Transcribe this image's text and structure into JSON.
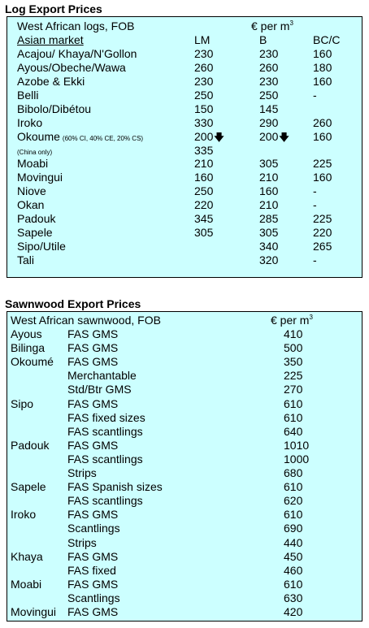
{
  "log_title": "Log Export Prices",
  "log_header": {
    "description": "West African logs, FOB",
    "currency": "€ per m",
    "currency_exp": "3",
    "market": "Asian market",
    "col_lm": "LM",
    "col_b": "B",
    "col_bcc": "BC/C"
  },
  "log_rows": [
    {
      "name": "Acajou/ Khaya/N'Gollon",
      "lm": "230",
      "b": "230",
      "bcc": "160"
    },
    {
      "name": "Ayous/Obeche/Wawa",
      "lm": "260",
      "b": "260",
      "bcc": "180"
    },
    {
      "name": "Azobe & Ekki",
      "lm": "230",
      "b": "230",
      "bcc": "160"
    },
    {
      "name": "Belli",
      "lm": "250",
      "b": "250",
      "bcc": "-"
    },
    {
      "name": "Bibolo/Dibétou",
      "lm": "150",
      "b": "145",
      "bcc": ""
    },
    {
      "name": "Iroko",
      "lm": "330",
      "b": "290",
      "bcc": "260"
    },
    {
      "name": "Okoume",
      "note": "(60% CI, 40% CE, 20% CS)",
      "lm": "200",
      "lm_arrow": "🡇",
      "b": "200",
      "b_arrow": "🡇",
      "bcc": "160"
    },
    {
      "name": "(China only)",
      "small": true,
      "lm": "335",
      "b": "",
      "bcc": ""
    },
    {
      "name": "Moabi",
      "lm": "210",
      "b": "305",
      "bcc": "225"
    },
    {
      "name": "Movingui",
      "lm": "160",
      "b": "210",
      "bcc": "160"
    },
    {
      "name": "Niove",
      "lm": "250",
      "b": "160",
      "bcc": "-"
    },
    {
      "name": "Okan",
      "lm": "220",
      "b": "210",
      "bcc": "-"
    },
    {
      "name": "Padouk",
      "lm": "345",
      "b": "285",
      "bcc": "225"
    },
    {
      "name": "Sapele",
      "lm": "305",
      "b": "305",
      "bcc": "220"
    },
    {
      "name": "Sipo/Utile",
      "lm": "",
      "b": "340",
      "bcc": "265"
    },
    {
      "name": "Tali",
      "lm": "",
      "b": "320",
      "bcc": "-"
    }
  ],
  "saw_title": "Sawnwood Export Prices",
  "saw_header": {
    "description": "West African sawnwood, FOB",
    "currency": "€ per m",
    "currency_exp": "3"
  },
  "saw_rows": [
    {
      "species": "Ayous",
      "grade": "FAS GMS",
      "price": "410"
    },
    {
      "species": "Bilinga",
      "grade": "FAS GMS",
      "price": "500"
    },
    {
      "species": "Okoumé",
      "grade": "FAS GMS",
      "price": "350"
    },
    {
      "species": "",
      "grade": "Merchantable",
      "price": "225"
    },
    {
      "species": "",
      "grade": "Std/Btr GMS",
      "price": "270"
    },
    {
      "species": "Sipo",
      "grade": "FAS GMS",
      "price": "610"
    },
    {
      "species": "",
      "grade": "FAS fixed sizes",
      "price": "610"
    },
    {
      "species": "",
      "grade": "FAS scantlings",
      "price": "640"
    },
    {
      "species": "Padouk",
      "grade": "FAS GMS",
      "price": "1010"
    },
    {
      "species": "",
      "grade": "FAS scantlings",
      "price": "1000"
    },
    {
      "species": "",
      "grade": "Strips",
      "price": "680"
    },
    {
      "species": "Sapele",
      "grade": "FAS Spanish sizes",
      "price": "610"
    },
    {
      "species": "",
      "grade": "FAS scantlings",
      "price": "620"
    },
    {
      "species": "Iroko",
      "grade": "FAS GMS",
      "price": "610"
    },
    {
      "species": "",
      "grade": "Scantlings",
      "price": "690"
    },
    {
      "species": "",
      "grade": "Strips",
      "price": "440"
    },
    {
      "species": "Khaya",
      "grade": "FAS GMS",
      "price": "450"
    },
    {
      "species": "",
      "grade": "FAS fixed",
      "price": "460"
    },
    {
      "species": "Moabi",
      "grade": "FAS GMS",
      "price": "610"
    },
    {
      "species": "",
      "grade": "Scantlings",
      "price": "630"
    },
    {
      "species": "Movingui",
      "grade": "FAS GMS",
      "price": "420"
    }
  ]
}
